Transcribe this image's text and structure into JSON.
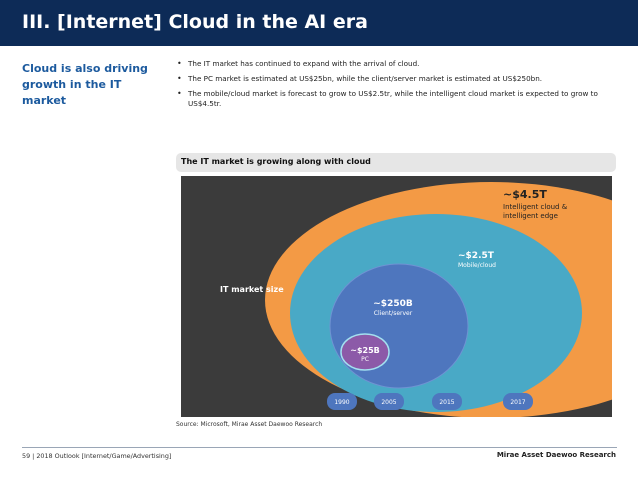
{
  "header": {
    "title": "III. [Internet] Cloud in the AI era"
  },
  "sidebar": {
    "heading": "Cloud is also driving growth in the IT market"
  },
  "bullets": [
    "The IT market has continued to expand with the arrival of cloud.",
    "The PC market is estimated at US$25bn, while the client/server market is estimated at US$250bn.",
    "The mobile/cloud market is forecast to grow to US$2.5tr, while the intelligent cloud market is expected to grow to US$4.5tr."
  ],
  "figure": {
    "title": "The IT market is growing along with cloud",
    "overlay_label": "IT market size",
    "source": "Source:  Microsoft, Mirae Asset Daewoo Research",
    "colors": {
      "background": "#3b3b3b",
      "intelligent_cloud": "#f39a45",
      "mobile_cloud": "#49a9c6",
      "client_server": "#4e76be",
      "pc": "#8c5aa8",
      "year_pill": "#4e76be"
    },
    "segments": [
      {
        "value": "~$4.5T",
        "label_line1": "Intelligent cloud &",
        "label_line2": "intelligent edge"
      },
      {
        "value": "~$2.5T",
        "label_line1": "Mobile/cloud",
        "label_line2": ""
      },
      {
        "value": "~$250B",
        "label_line1": "Client/server",
        "label_line2": ""
      },
      {
        "value": "~$25B",
        "label_line1": "PC",
        "label_line2": ""
      }
    ],
    "years": [
      "1990",
      "2005",
      "2015",
      "2017"
    ]
  },
  "footer": {
    "left": "59 | 2018 Outlook [Internet/Game/Advertising]",
    "right": "Mirae Asset Daewoo Research"
  }
}
